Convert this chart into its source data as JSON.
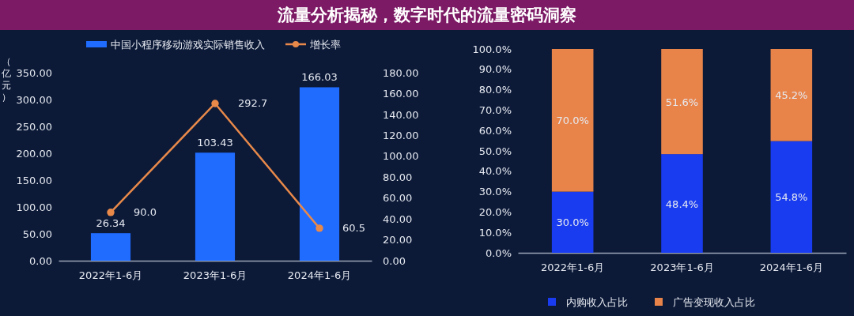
{
  "chart_data": [
    {
      "type": "bar",
      "title": "流量分析揭秘，数字时代的流量密码洞察",
      "ylabel": "（亿元）",
      "categories": [
        "2022年1-6月",
        "2023年1-6月",
        "2024年1-6月"
      ],
      "series": [
        {
          "name": "中国小程序移动游戏实际销售收入",
          "axis": "y2",
          "color": "#1f6cff",
          "values": [
            26.34,
            103.43,
            166.03
          ],
          "value_labels": [
            "26.34",
            "103.43",
            "166.03"
          ]
        },
        {
          "name": "增长率",
          "type": "line",
          "color": "#e8894a",
          "marker": "circle",
          "values": [
            90.0,
            292.7,
            60.5
          ],
          "value_labels": [
            "90.0",
            "292.7",
            "60.5"
          ]
        }
      ],
      "ylim": [
        0,
        350
      ],
      "yticks": [
        {
          "value": 0,
          "label": "0.00"
        },
        {
          "value": 50,
          "label": "50.00"
        },
        {
          "value": 100,
          "label": "100.00"
        },
        {
          "value": 150,
          "label": "150.00"
        },
        {
          "value": 200,
          "label": "200.00"
        },
        {
          "value": 250,
          "label": "250.00"
        },
        {
          "value": 300,
          "label": "300.00"
        },
        {
          "value": 350,
          "label": "350.00"
        }
      ],
      "y2lim": [
        0,
        180
      ],
      "y2ticks": [
        {
          "value": 0,
          "label": "0.00"
        },
        {
          "value": 20,
          "label": "20.00"
        },
        {
          "value": 40,
          "label": "40.00"
        },
        {
          "value": 60,
          "label": "60.00"
        },
        {
          "value": 80,
          "label": "80.00"
        },
        {
          "value": 100,
          "label": "100.00"
        },
        {
          "value": 120,
          "label": "120.00"
        },
        {
          "value": 140,
          "label": "140.00"
        },
        {
          "value": 160,
          "label": "160.00"
        },
        {
          "value": 180,
          "label": "180.00"
        }
      ],
      "legend": "top"
    },
    {
      "type": "bar",
      "stacked": true,
      "categories": [
        "2022年1-6月",
        "2023年1-6月",
        "2024年1-6月"
      ],
      "series": [
        {
          "name": "内购收入占比",
          "color": "#1a3cf0",
          "values": [
            30.0,
            48.4,
            54.8
          ],
          "value_labels": [
            "30.0%",
            "48.4%",
            "54.8%"
          ]
        },
        {
          "name": "广告变现收入占比",
          "color": "#e8844a",
          "values": [
            70.0,
            51.6,
            45.2
          ],
          "value_labels": [
            "70.0%",
            "51.6%",
            "45.2%"
          ]
        }
      ],
      "ylim": [
        0,
        100
      ],
      "yticks": [
        {
          "value": 0,
          "label": "0.0%"
        },
        {
          "value": 10,
          "label": "10.0%"
        },
        {
          "value": 20,
          "label": "20.0%"
        },
        {
          "value": 30,
          "label": "30.0%"
        },
        {
          "value": 40,
          "label": "40.0%"
        },
        {
          "value": 50,
          "label": "50.0%"
        },
        {
          "value": 60,
          "label": "60.0%"
        },
        {
          "value": 70,
          "label": "70.0%"
        },
        {
          "value": 80,
          "label": "80.0%"
        },
        {
          "value": 90,
          "label": "90.0%"
        },
        {
          "value": 100,
          "label": "100.0%"
        }
      ],
      "legend": "bottom"
    }
  ]
}
